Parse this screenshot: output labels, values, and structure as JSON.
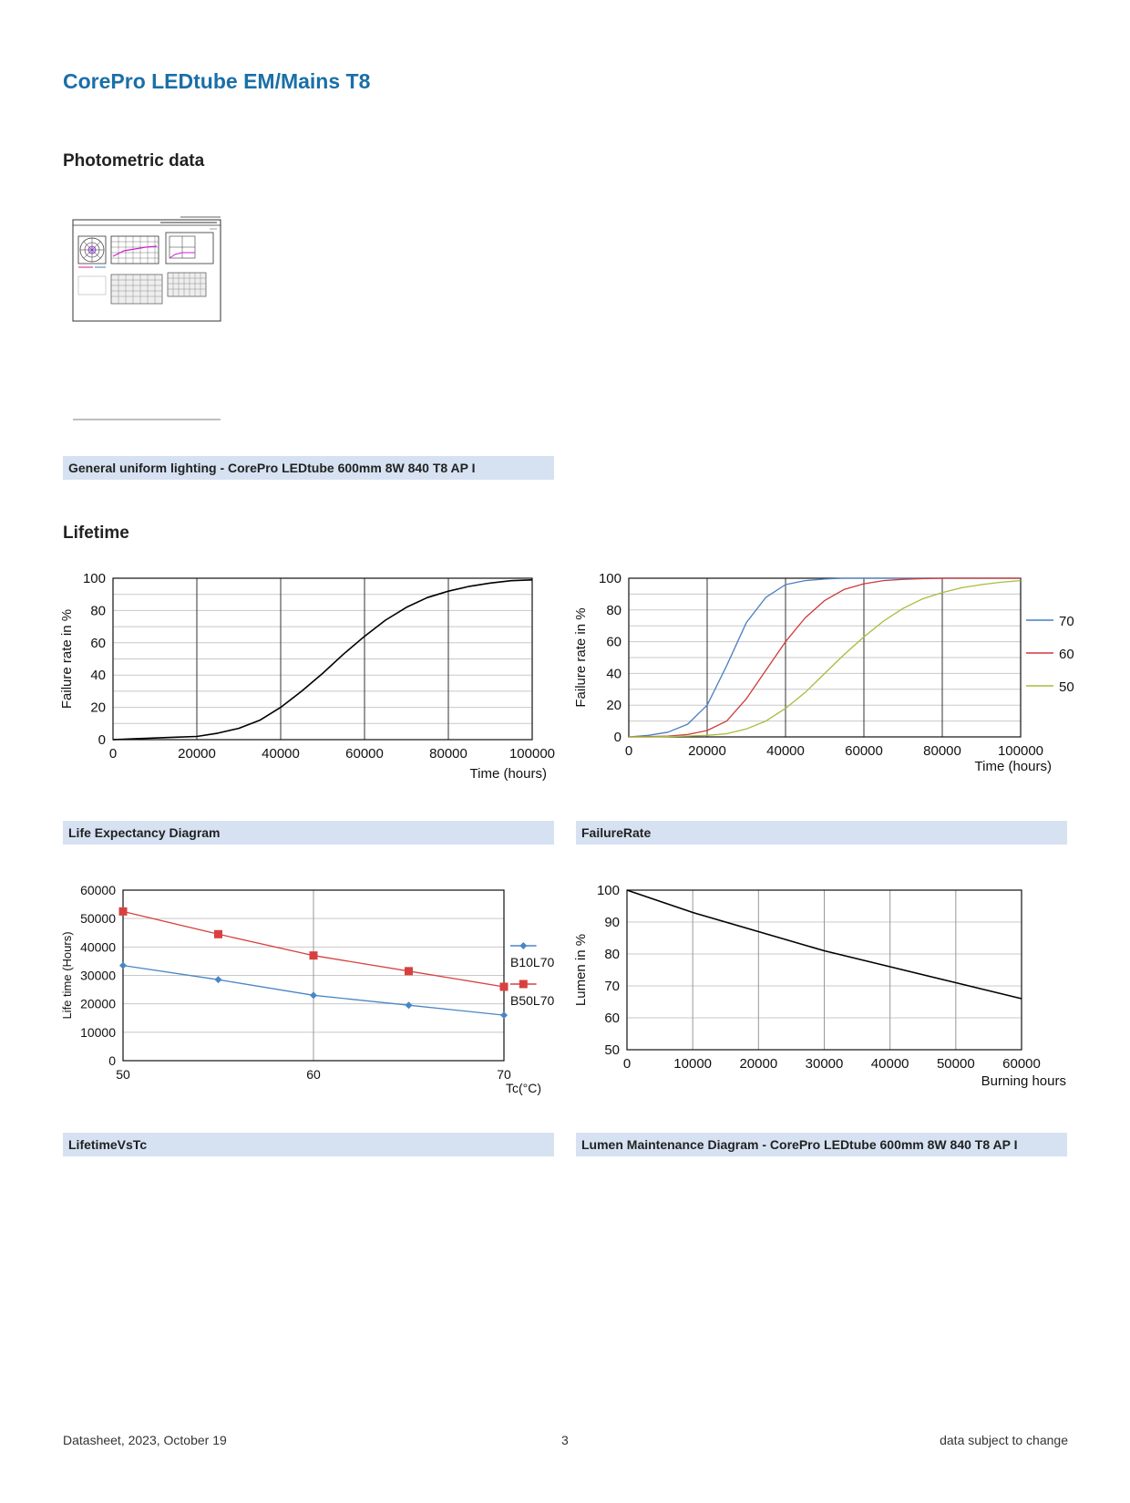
{
  "title": "CorePro LEDtube EM/Mains T8",
  "sections": {
    "photometric": "Photometric data",
    "lifetime": "Lifetime"
  },
  "captions": {
    "photometric": "General uniform lighting - CorePro LEDtube 600mm 8W 840 T8 AP I",
    "life_expectancy": "Life Expectancy Diagram",
    "failure_rate": "FailureRate",
    "lifetime_vs_tc": "LifetimeVsTc",
    "lumen_maintenance": "Lumen Maintenance Diagram - CorePro LEDtube 600mm 8W 840 T8 AP I"
  },
  "footer": {
    "left": "Datasheet, 2023, October 19",
    "center": "3",
    "right": "data subject to change"
  },
  "colors": {
    "brand": "#1a6fa8",
    "caption_bg": "#d6e2f2",
    "series_70": "#4a7fc1",
    "series_60": "#d0393b",
    "series_50": "#a8bc3c",
    "b10": "#4a86c4",
    "b50": "#d84040"
  },
  "chart_data": [
    {
      "type": "line",
      "ylabel": "Failure rate in %",
      "xlabel": "Time (hours)",
      "xlim": [
        0,
        100000
      ],
      "ylim": [
        0,
        100
      ],
      "xticks": [
        "0",
        "20000",
        "40000",
        "60000",
        "80000",
        "100000"
      ],
      "yticks": [
        "0",
        "20",
        "40",
        "60",
        "80",
        "100"
      ],
      "x": [
        0,
        5000,
        10000,
        15000,
        20000,
        25000,
        30000,
        35000,
        40000,
        45000,
        50000,
        55000,
        60000,
        65000,
        70000,
        75000,
        80000,
        85000,
        90000,
        95000,
        100000
      ],
      "values": [
        0,
        0.5,
        1,
        1.5,
        2,
        4,
        7,
        12,
        20,
        30,
        41,
        53,
        64,
        74,
        82,
        88,
        92,
        95,
        97,
        98.5,
        99
      ]
    },
    {
      "type": "line",
      "ylabel": "Failure rate in %",
      "xlabel": "Time (hours)",
      "xlim": [
        0,
        100000
      ],
      "ylim": [
        0,
        100
      ],
      "xticks": [
        "0",
        "20000",
        "40000",
        "60000",
        "80000",
        "100000"
      ],
      "yticks": [
        "0",
        "20",
        "40",
        "60",
        "80",
        "100"
      ],
      "legend_position": "right",
      "x": [
        0,
        5000,
        10000,
        15000,
        20000,
        25000,
        30000,
        35000,
        40000,
        45000,
        50000,
        55000,
        60000,
        65000,
        70000,
        75000,
        80000,
        85000,
        90000,
        95000,
        100000
      ],
      "series": [
        {
          "name": "70",
          "color": "#4a7fc1",
          "values": [
            0,
            1,
            3,
            8,
            20,
            45,
            72,
            88,
            96,
            98.5,
            99.5,
            100,
            100,
            100,
            100,
            100,
            100,
            100,
            100,
            100,
            100
          ]
        },
        {
          "name": "60",
          "color": "#d0393b",
          "values": [
            0,
            0.2,
            0.5,
            1.5,
            4,
            10,
            24,
            42,
            60,
            75,
            86,
            93,
            96.5,
            98.5,
            99.3,
            99.7,
            100,
            100,
            100,
            100,
            100
          ]
        },
        {
          "name": "50",
          "color": "#a8bc3c",
          "values": [
            0,
            0,
            0.2,
            0.5,
            1,
            2,
            5,
            10,
            18,
            28,
            40,
            52,
            63,
            73,
            81,
            87,
            91,
            94,
            96,
            97.5,
            98.5
          ]
        }
      ]
    },
    {
      "type": "line",
      "ylabel": "Life time (Hours)",
      "xlabel": "Tc(°C)",
      "xlim": [
        50,
        70
      ],
      "ylim": [
        0,
        60000
      ],
      "xticks": [
        "50",
        "60",
        "70"
      ],
      "yticks": [
        "0",
        "10000",
        "20000",
        "30000",
        "40000",
        "50000",
        "60000"
      ],
      "legend_position": "right",
      "x": [
        50,
        55,
        60,
        65,
        70
      ],
      "series": [
        {
          "name": "B10L70",
          "color": "#4a86c4",
          "values": [
            33500,
            28500,
            23000,
            19500,
            16000
          ]
        },
        {
          "name": "B50L70",
          "color": "#d84040",
          "values": [
            52500,
            44500,
            37000,
            31500,
            26000
          ]
        }
      ]
    },
    {
      "type": "line",
      "ylabel": "Lumen in %",
      "xlabel": "Burning hours",
      "xlim": [
        0,
        60000
      ],
      "ylim": [
        50,
        100
      ],
      "xticks": [
        "0",
        "10000",
        "20000",
        "30000",
        "40000",
        "50000",
        "60000"
      ],
      "yticks": [
        "50",
        "60",
        "70",
        "80",
        "90",
        "100"
      ],
      "x": [
        0,
        10000,
        20000,
        30000,
        40000,
        50000,
        60000
      ],
      "values": [
        100,
        93,
        87,
        81,
        76,
        71,
        66
      ]
    }
  ]
}
